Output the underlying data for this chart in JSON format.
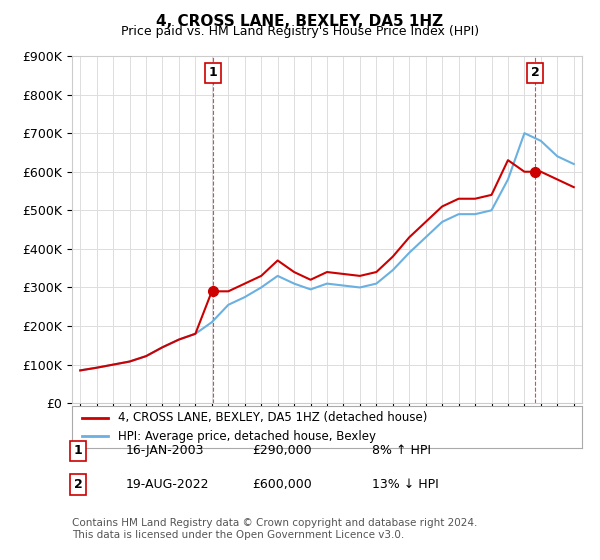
{
  "title": "4, CROSS LANE, BEXLEY, DA5 1HZ",
  "subtitle": "Price paid vs. HM Land Registry's House Price Index (HPI)",
  "xlabel": "",
  "ylabel": "",
  "ylim": [
    0,
    900000
  ],
  "yticks": [
    0,
    100000,
    200000,
    300000,
    400000,
    500000,
    600000,
    700000,
    800000,
    900000
  ],
  "ytick_labels": [
    "£0",
    "£100K",
    "£200K",
    "£300K",
    "£400K",
    "£500K",
    "£600K",
    "£700K",
    "£800K",
    "£900K"
  ],
  "hpi_color": "#6ab0e0",
  "price_color": "#cc0000",
  "marker_color": "#cc0000",
  "sale1_label": "1",
  "sale1_date": "16-JAN-2003",
  "sale1_price": "£290,000",
  "sale1_hpi": "8% ↑ HPI",
  "sale2_label": "2",
  "sale2_date": "19-AUG-2022",
  "sale2_price": "£600,000",
  "sale2_hpi": "13% ↓ HPI",
  "legend_line1": "4, CROSS LANE, BEXLEY, DA5 1HZ (detached house)",
  "legend_line2": "HPI: Average price, detached house, Bexley",
  "footer": "Contains HM Land Registry data © Crown copyright and database right 2024.\nThis data is licensed under the Open Government Licence v3.0.",
  "background_color": "#ffffff",
  "grid_color": "#dddddd",
  "hpi_years": [
    1995,
    1996,
    1997,
    1998,
    1999,
    2000,
    2001,
    2002,
    2003,
    2004,
    2005,
    2006,
    2007,
    2008,
    2009,
    2010,
    2011,
    2012,
    2013,
    2014,
    2015,
    2016,
    2017,
    2018,
    2019,
    2020,
    2021,
    2022,
    2023,
    2024,
    2025
  ],
  "hpi_values": [
    85000,
    92000,
    100000,
    108000,
    122000,
    145000,
    165000,
    180000,
    210000,
    255000,
    275000,
    300000,
    330000,
    310000,
    295000,
    310000,
    305000,
    300000,
    310000,
    345000,
    390000,
    430000,
    470000,
    490000,
    490000,
    500000,
    580000,
    700000,
    680000,
    640000,
    620000
  ],
  "price_years": [
    1995,
    1996,
    1997,
    1998,
    1999,
    2000,
    2001,
    2002,
    2003,
    2004,
    2005,
    2006,
    2007,
    2008,
    2009,
    2010,
    2011,
    2012,
    2013,
    2014,
    2015,
    2016,
    2017,
    2018,
    2019,
    2020,
    2021,
    2022,
    2023,
    2024,
    2025
  ],
  "price_values": [
    85000,
    92000,
    100000,
    108000,
    122000,
    145000,
    165000,
    180000,
    290000,
    290000,
    310000,
    330000,
    370000,
    340000,
    320000,
    340000,
    335000,
    330000,
    340000,
    380000,
    430000,
    470000,
    510000,
    530000,
    530000,
    540000,
    630000,
    600000,
    600000,
    580000,
    560000
  ],
  "sale1_x": 2003.05,
  "sale1_y": 290000,
  "sale2_x": 2022.65,
  "sale2_y": 600000,
  "xlim_left": 1994.5,
  "xlim_right": 2025.5
}
